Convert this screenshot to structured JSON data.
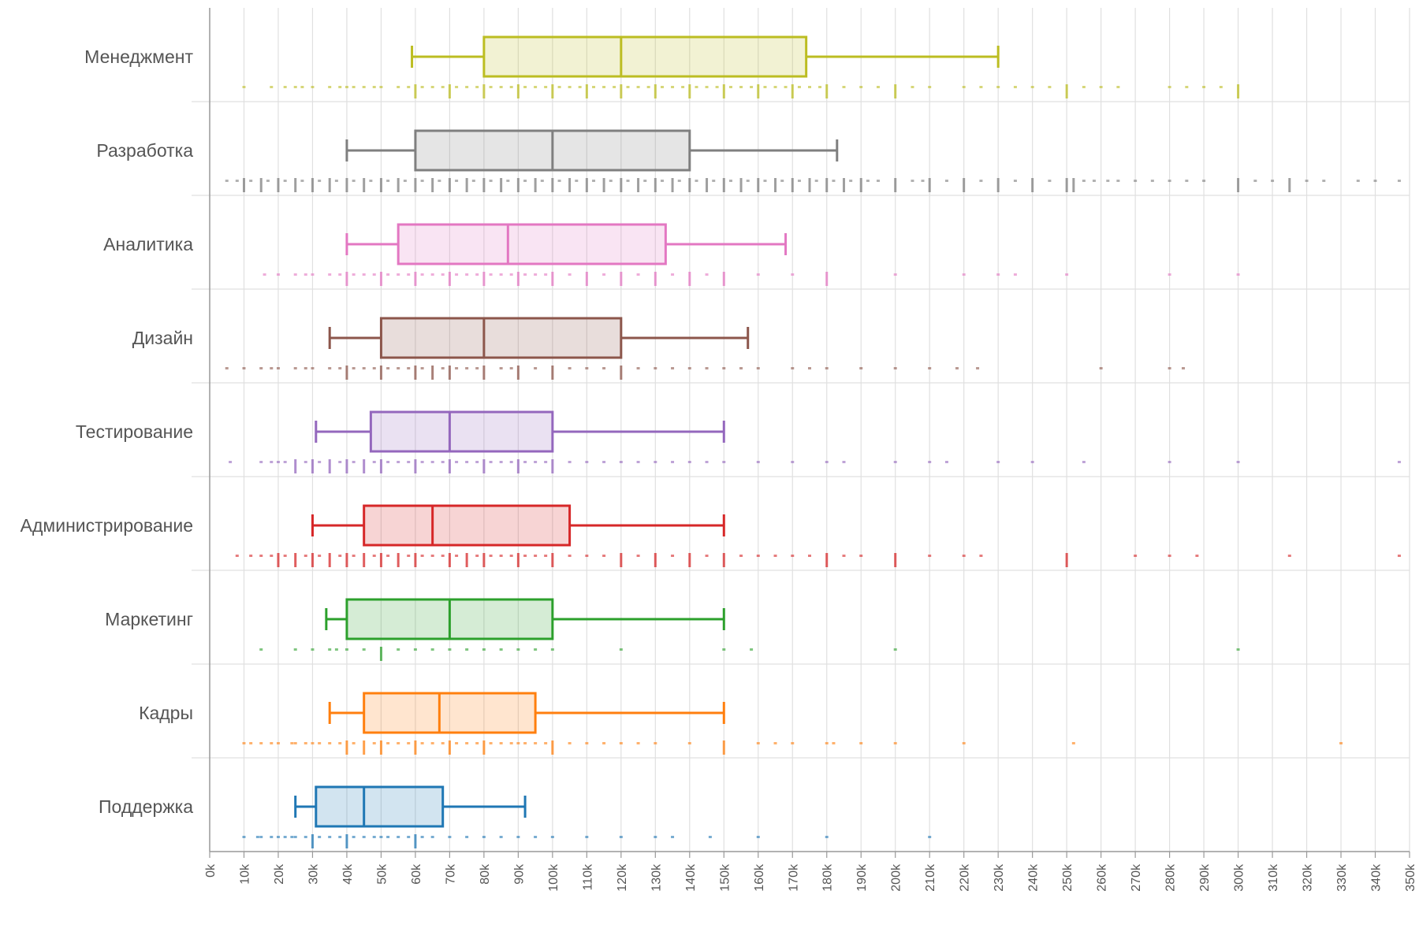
{
  "chart_data": {
    "type": "box",
    "orientation": "horizontal",
    "title": "",
    "xlabel": "",
    "ylabel": "",
    "xlim": [
      0,
      350000
    ],
    "x_tick_step": 10000,
    "x_tick_labels": [
      "0k",
      "10k",
      "20k",
      "30k",
      "40k",
      "50k",
      "60k",
      "70k",
      "80k",
      "90k",
      "100k",
      "110k",
      "120k",
      "130k",
      "140k",
      "150k",
      "160k",
      "170k",
      "180k",
      "190k",
      "200k",
      "210k",
      "220k",
      "230k",
      "240k",
      "250k",
      "260k",
      "270k",
      "280k",
      "290k",
      "300k",
      "310k",
      "320k",
      "330k",
      "340k",
      "350k"
    ],
    "grid": "vertical",
    "legend": "none",
    "categories": [
      "Менеджмент",
      "Разработка",
      "Аналитика",
      "Дизайн",
      "Тестирование",
      "Администрирование",
      "Маркетинг",
      "Кадры",
      "Поддержка"
    ],
    "series": [
      {
        "category": "Менеджмент",
        "color": "#bcbd22",
        "whisker_low": 59000,
        "q1": 80000,
        "median": 120000,
        "q3": 174000,
        "whisker_high": 230000
      },
      {
        "category": "Разработка",
        "color": "#7f7f7f",
        "whisker_low": 40000,
        "q1": 60000,
        "median": 100000,
        "q3": 140000,
        "whisker_high": 183000
      },
      {
        "category": "Аналитика",
        "color": "#e377c2",
        "whisker_low": 40000,
        "q1": 55000,
        "median": 87000,
        "q3": 133000,
        "whisker_high": 168000
      },
      {
        "category": "Дизайн",
        "color": "#8c564b",
        "whisker_low": 35000,
        "q1": 50000,
        "median": 80000,
        "q3": 120000,
        "whisker_high": 157000
      },
      {
        "category": "Тестирование",
        "color": "#9467bd",
        "whisker_low": 31000,
        "q1": 47000,
        "median": 70000,
        "q3": 100000,
        "whisker_high": 150000
      },
      {
        "category": "Администрирование",
        "color": "#d62728",
        "whisker_low": 30000,
        "q1": 45000,
        "median": 65000,
        "q3": 105000,
        "whisker_high": 150000
      },
      {
        "category": "Маркетинг",
        "color": "#2ca02c",
        "whisker_low": 34000,
        "q1": 40000,
        "median": 70000,
        "q3": 100000,
        "whisker_high": 150000
      },
      {
        "category": "Кадры",
        "color": "#ff7f0e",
        "whisker_low": 35000,
        "q1": 45000,
        "median": 67000,
        "q3": 95000,
        "whisker_high": 150000
      },
      {
        "category": "Поддержка",
        "color": "#1f77b4",
        "whisker_low": 25000,
        "q1": 31000,
        "median": 45000,
        "q3": 68000,
        "whisker_high": 92000
      }
    ],
    "rug": [
      {
        "category": "Менеджмент",
        "major": [
          60000,
          70000,
          80000,
          90000,
          100000,
          110000,
          120000,
          130000,
          140000,
          150000,
          160000,
          170000,
          180000,
          200000,
          250000,
          300000
        ],
        "minor": [
          10000,
          18000,
          22000,
          25000,
          27000,
          30000,
          35000,
          38000,
          40000,
          42000,
          45000,
          48000,
          50000,
          55000,
          58000,
          62000,
          65000,
          68000,
          72000,
          75000,
          78000,
          82000,
          85000,
          88000,
          92000,
          95000,
          98000,
          102000,
          105000,
          108000,
          112000,
          115000,
          118000,
          122000,
          125000,
          128000,
          132000,
          135000,
          138000,
          142000,
          145000,
          148000,
          152000,
          155000,
          158000,
          162000,
          165000,
          168000,
          172000,
          175000,
          178000,
          185000,
          190000,
          195000,
          205000,
          210000,
          220000,
          225000,
          230000,
          235000,
          240000,
          245000,
          255000,
          260000,
          265000,
          280000,
          285000,
          290000,
          295000
        ]
      },
      {
        "category": "Разработка",
        "major": [
          10000,
          15000,
          20000,
          25000,
          30000,
          35000,
          40000,
          45000,
          50000,
          55000,
          60000,
          65000,
          70000,
          75000,
          80000,
          85000,
          90000,
          95000,
          100000,
          105000,
          110000,
          115000,
          120000,
          125000,
          130000,
          135000,
          140000,
          145000,
          150000,
          155000,
          160000,
          165000,
          170000,
          175000,
          180000,
          185000,
          190000,
          200000,
          210000,
          220000,
          230000,
          240000,
          250000,
          252000,
          300000,
          315000
        ],
        "minor": [
          5000,
          8000,
          12000,
          17000,
          22000,
          27000,
          32000,
          37000,
          42000,
          47000,
          52000,
          57000,
          62000,
          67000,
          72000,
          77000,
          82000,
          87000,
          92000,
          97000,
          102000,
          107000,
          112000,
          117000,
          122000,
          127000,
          132000,
          137000,
          142000,
          147000,
          152000,
          157000,
          162000,
          167000,
          172000,
          177000,
          182000,
          187000,
          192000,
          195000,
          205000,
          208000,
          215000,
          225000,
          235000,
          245000,
          255000,
          258000,
          262000,
          265000,
          270000,
          275000,
          280000,
          285000,
          290000,
          305000,
          310000,
          320000,
          325000,
          335000,
          340000,
          347000
        ]
      },
      {
        "category": "Аналитика",
        "major": [
          40000,
          50000,
          60000,
          70000,
          80000,
          90000,
          100000,
          110000,
          120000,
          130000,
          140000,
          150000,
          180000
        ],
        "minor": [
          16000,
          20000,
          25000,
          28000,
          30000,
          35000,
          38000,
          42000,
          45000,
          48000,
          52000,
          55000,
          58000,
          62000,
          65000,
          68000,
          72000,
          75000,
          78000,
          82000,
          85000,
          88000,
          92000,
          95000,
          98000,
          105000,
          115000,
          125000,
          135000,
          145000,
          160000,
          170000,
          200000,
          220000,
          230000,
          235000,
          250000,
          280000,
          300000
        ]
      },
      {
        "category": "Дизайн",
        "major": [
          40000,
          50000,
          60000,
          65000,
          70000,
          80000,
          90000,
          100000,
          120000
        ],
        "minor": [
          5000,
          10000,
          15000,
          18000,
          20000,
          25000,
          28000,
          30000,
          35000,
          38000,
          42000,
          45000,
          48000,
          52000,
          55000,
          58000,
          62000,
          68000,
          72000,
          75000,
          78000,
          85000,
          88000,
          95000,
          105000,
          110000,
          115000,
          125000,
          130000,
          135000,
          140000,
          145000,
          150000,
          155000,
          160000,
          170000,
          175000,
          180000,
          190000,
          200000,
          210000,
          218000,
          224000,
          260000,
          280000,
          284000
        ]
      },
      {
        "category": "Тестирование",
        "major": [
          25000,
          30000,
          35000,
          40000,
          45000,
          50000,
          60000,
          70000,
          80000,
          90000,
          100000
        ],
        "minor": [
          6000,
          15000,
          18000,
          20000,
          22000,
          28000,
          32000,
          38000,
          42000,
          48000,
          52000,
          55000,
          58000,
          62000,
          65000,
          68000,
          72000,
          75000,
          78000,
          82000,
          85000,
          88000,
          92000,
          95000,
          98000,
          105000,
          110000,
          115000,
          120000,
          125000,
          130000,
          135000,
          140000,
          145000,
          150000,
          160000,
          170000,
          180000,
          185000,
          200000,
          210000,
          215000,
          230000,
          240000,
          255000,
          280000,
          300000,
          347000
        ]
      },
      {
        "category": "Администрирование",
        "major": [
          20000,
          25000,
          30000,
          35000,
          40000,
          45000,
          50000,
          55000,
          60000,
          70000,
          75000,
          80000,
          90000,
          100000,
          120000,
          130000,
          140000,
          150000,
          180000,
          200000,
          250000
        ],
        "minor": [
          8000,
          12000,
          15000,
          18000,
          22000,
          28000,
          32000,
          38000,
          42000,
          48000,
          52000,
          58000,
          62000,
          65000,
          68000,
          72000,
          78000,
          82000,
          85000,
          88000,
          92000,
          95000,
          98000,
          105000,
          110000,
          115000,
          125000,
          135000,
          145000,
          155000,
          160000,
          165000,
          170000,
          175000,
          185000,
          190000,
          210000,
          220000,
          225000,
          270000,
          280000,
          288000,
          315000,
          347000
        ]
      },
      {
        "category": "Маркетинг",
        "major": [
          50000
        ],
        "minor": [
          15000,
          25000,
          30000,
          35000,
          37000,
          40000,
          45000,
          55000,
          60000,
          65000,
          70000,
          75000,
          80000,
          85000,
          90000,
          95000,
          100000,
          120000,
          150000,
          158000,
          200000,
          300000
        ]
      },
      {
        "category": "Кадры",
        "major": [
          40000,
          45000,
          50000,
          60000,
          70000,
          80000,
          100000,
          150000
        ],
        "minor": [
          10000,
          12000,
          15000,
          18000,
          20000,
          24000,
          25000,
          28000,
          30000,
          32000,
          35000,
          38000,
          42000,
          48000,
          52000,
          55000,
          58000,
          62000,
          65000,
          68000,
          72000,
          75000,
          78000,
          82000,
          85000,
          88000,
          90000,
          92000,
          95000,
          98000,
          105000,
          110000,
          115000,
          120000,
          125000,
          130000,
          140000,
          160000,
          165000,
          170000,
          180000,
          182000,
          190000,
          200000,
          220000,
          252000,
          330000
        ]
      },
      {
        "category": "Поддержка",
        "major": [
          30000,
          40000,
          60000
        ],
        "minor": [
          10000,
          14000,
          15000,
          18000,
          20000,
          22000,
          24000,
          25000,
          28000,
          32000,
          35000,
          38000,
          42000,
          45000,
          48000,
          50000,
          52000,
          55000,
          58000,
          62000,
          65000,
          70000,
          75000,
          80000,
          85000,
          90000,
          95000,
          100000,
          110000,
          120000,
          130000,
          135000,
          146000,
          160000,
          180000,
          210000
        ]
      }
    ]
  }
}
